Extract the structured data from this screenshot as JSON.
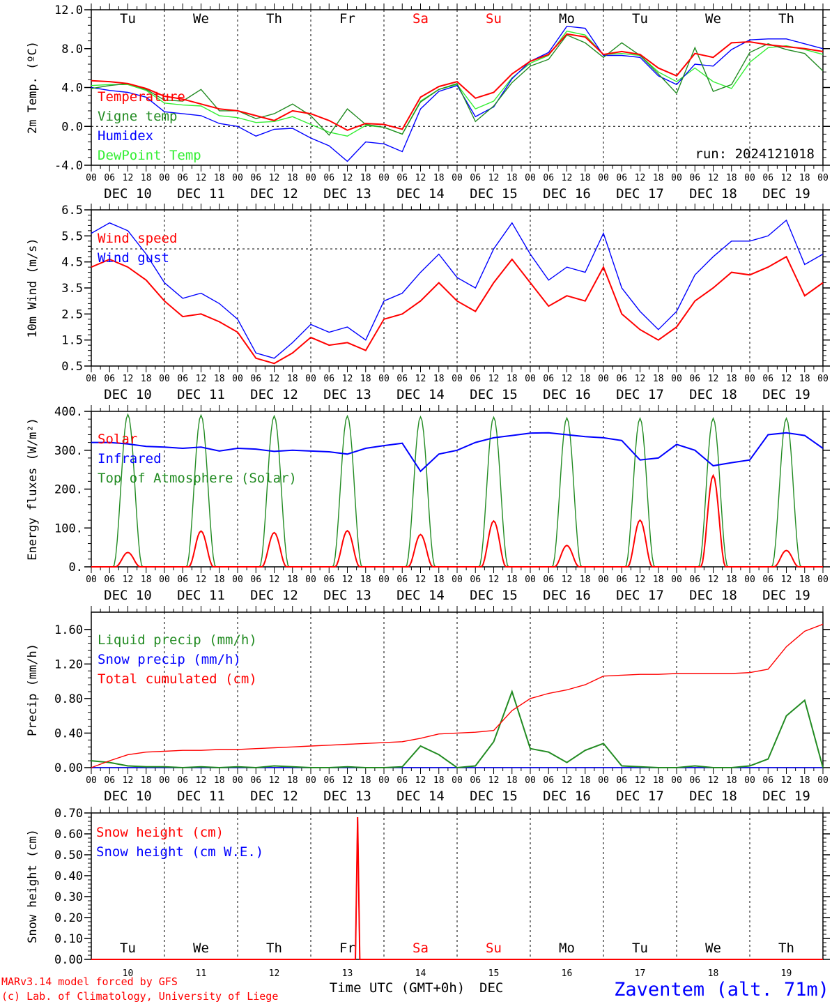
{
  "time_axis": {
    "hour_ticks": [
      "00",
      "06",
      "12",
      "18"
    ],
    "dates": [
      "DEC 10",
      "DEC 11",
      "DEC 12",
      "DEC 13",
      "DEC 14",
      "DEC 15",
      "DEC 16",
      "DEC 17",
      "DEC 18",
      "DEC 19"
    ],
    "weekdays": [
      "Tu",
      "We",
      "Th",
      "Fr",
      "Sa",
      "Su",
      "Mo",
      "Tu",
      "We",
      "Th"
    ],
    "weekend_color": "#ff0000",
    "days_numbers": [
      "10",
      "11",
      "12",
      "13",
      "14",
      "15",
      "16",
      "17",
      "18",
      "19"
    ],
    "title_left": "Time UTC (GMT+0h)",
    "title_right": "DEC"
  },
  "footer": {
    "model_line": "MARv3.14 model forced by GFS",
    "credit_line": "(c) Lab. of Climatology, University of Liege",
    "station": "Zaventem (alt. 71m)"
  },
  "colors": {
    "red": "#ff0000",
    "green": "#228b22",
    "blue": "#0000ff",
    "lightgreen": "#33ee33"
  },
  "chart_data": [
    {
      "type": "line",
      "id": "temp",
      "ylabel": "2m Temp. (ºC)",
      "ylim": [
        -4.0,
        12.0
      ],
      "yticks": [
        "-4.0",
        "0.0",
        "4.0",
        "8.0",
        "12.0"
      ],
      "ref_line": 0.0,
      "show_weekdays": true,
      "annotation": "run: 2024121018",
      "x_days": [
        0,
        0.25,
        0.5,
        0.75,
        1,
        1.25,
        1.5,
        1.75,
        2,
        2.25,
        2.5,
        2.75,
        3,
        3.25,
        3.5,
        3.75,
        4,
        4.25,
        4.5,
        4.75,
        5,
        5.25,
        5.5,
        5.75,
        6,
        6.25,
        6.5,
        6.75,
        7,
        7.25,
        7.5,
        7.75,
        8,
        8.25,
        8.5,
        8.75,
        9,
        9.25,
        9.5,
        9.75,
        10
      ],
      "series": [
        {
          "name": "Temperature",
          "color": "red",
          "values": [
            4.7,
            4.6,
            4.4,
            3.9,
            3.1,
            2.8,
            2.3,
            1.8,
            1.6,
            1.1,
            0.6,
            1.6,
            1.3,
            0.6,
            -0.4,
            0.3,
            0.2,
            -0.3,
            3.0,
            4.1,
            4.6,
            2.9,
            3.5,
            5.4,
            6.7,
            7.4,
            9.5,
            9.2,
            7.4,
            7.7,
            7.4,
            6.0,
            5.2,
            7.5,
            7.1,
            8.6,
            8.7,
            8.4,
            8.2,
            8.0,
            7.7
          ]
        },
        {
          "name": "Vigne temp",
          "color": "green",
          "values": [
            3.9,
            4.2,
            4.4,
            3.8,
            2.7,
            2.6,
            3.8,
            1.6,
            1.6,
            0.8,
            1.3,
            2.3,
            1.1,
            -0.9,
            1.8,
            0.2,
            -0.1,
            -0.8,
            2.5,
            3.8,
            4.4,
            0.5,
            2.1,
            4.5,
            6.2,
            6.9,
            9.4,
            8.6,
            7.1,
            8.6,
            7.3,
            5.4,
            3.4,
            8.1,
            3.6,
            4.3,
            7.6,
            8.5,
            7.9,
            7.5,
            5.7
          ]
        },
        {
          "name": "Humidex",
          "color": "blue",
          "values": [
            4.0,
            3.7,
            3.5,
            3.0,
            1.5,
            1.3,
            1.1,
            0.3,
            0.0,
            -1.0,
            -0.3,
            -0.2,
            -1.2,
            -2.0,
            -3.6,
            -1.6,
            -1.8,
            -2.6,
            1.8,
            3.6,
            4.2,
            1.0,
            2.0,
            4.9,
            6.7,
            7.6,
            10.3,
            10.1,
            7.3,
            7.3,
            7.1,
            5.2,
            4.3,
            6.4,
            6.2,
            7.9,
            8.9,
            9.0,
            9.0,
            8.5,
            8.0
          ]
        },
        {
          "name": "DewPoint Temp",
          "color": "lightgreen",
          "values": [
            4.2,
            4.3,
            4.3,
            3.7,
            2.4,
            2.2,
            2.1,
            1.1,
            0.9,
            0.4,
            0.5,
            1.0,
            0.2,
            -0.6,
            -1.0,
            0.1,
            -0.1,
            -0.8,
            2.6,
            3.8,
            4.3,
            1.8,
            2.6,
            5.0,
            6.5,
            7.3,
            9.8,
            9.4,
            7.4,
            7.5,
            7.3,
            5.6,
            4.6,
            6.0,
            4.6,
            3.9,
            6.6,
            8.1,
            8.3,
            7.9,
            7.4
          ]
        }
      ]
    },
    {
      "type": "line",
      "id": "wind",
      "ylabel": "10m Wind (m/s)",
      "ylim": [
        0.5,
        6.5
      ],
      "yticks": [
        "0.5",
        "1.5",
        "2.5",
        "3.5",
        "4.5",
        "5.5",
        "6.5"
      ],
      "ref_line": 5.0,
      "show_weekdays": false,
      "x_days": [
        0,
        0.25,
        0.5,
        0.75,
        1,
        1.25,
        1.5,
        1.75,
        2,
        2.25,
        2.5,
        2.75,
        3,
        3.25,
        3.5,
        3.75,
        4,
        4.25,
        4.5,
        4.75,
        5,
        5.25,
        5.5,
        5.75,
        6,
        6.25,
        6.5,
        6.75,
        7,
        7.25,
        7.5,
        7.75,
        8,
        8.25,
        8.5,
        8.75,
        9,
        9.25,
        9.5,
        9.75,
        10
      ],
      "series": [
        {
          "name": "Wind speed",
          "color": "red",
          "values": [
            4.3,
            4.6,
            4.3,
            3.8,
            3.0,
            2.4,
            2.5,
            2.2,
            1.8,
            0.8,
            0.6,
            1.0,
            1.6,
            1.3,
            1.4,
            1.1,
            2.3,
            2.5,
            3.0,
            3.7,
            3.0,
            2.6,
            3.7,
            4.6,
            3.7,
            2.8,
            3.2,
            3.0,
            4.3,
            2.5,
            1.9,
            1.5,
            2.0,
            3.0,
            3.5,
            4.1,
            4.0,
            4.3,
            4.7,
            3.2,
            3.7
          ]
        },
        {
          "name": "Wind gust",
          "color": "blue",
          "values": [
            5.6,
            6.0,
            5.7,
            4.8,
            3.7,
            3.1,
            3.3,
            2.9,
            2.3,
            1.0,
            0.8,
            1.4,
            2.1,
            1.8,
            2.0,
            1.5,
            3.0,
            3.3,
            4.1,
            4.8,
            3.9,
            3.5,
            5.0,
            6.0,
            4.8,
            3.8,
            4.3,
            4.1,
            5.6,
            3.5,
            2.6,
            1.9,
            2.6,
            4.0,
            4.7,
            5.3,
            5.3,
            5.5,
            6.1,
            4.4,
            4.8
          ]
        }
      ]
    },
    {
      "type": "line",
      "id": "energy",
      "ylabel": "Energy fluxes (W/m²)",
      "ylim": [
        0,
        400
      ],
      "yticks": [
        "0.",
        "100.",
        "200.",
        "300.",
        "400."
      ],
      "show_weekdays": false,
      "solar_peaks": [
        37,
        92,
        88,
        93,
        83,
        118,
        55,
        120,
        235,
        42
      ],
      "toa_peaks": [
        392,
        390,
        388,
        388,
        386,
        385,
        383,
        382,
        382,
        382
      ],
      "infrared": [
        320,
        320,
        316,
        310,
        308,
        305,
        308,
        298,
        305,
        303,
        297,
        300,
        298,
        296,
        290,
        305,
        312,
        318,
        246,
        290,
        300,
        320,
        332,
        338,
        344,
        345,
        340,
        335,
        332,
        325,
        275,
        280,
        315,
        300,
        260,
        268,
        275,
        340,
        345,
        338,
        305
      ],
      "series": [
        {
          "name": "Solar",
          "color": "red"
        },
        {
          "name": "Infrared",
          "color": "blue"
        },
        {
          "name": "Top of Atmosphere (Solar)",
          "color": "green"
        }
      ]
    },
    {
      "type": "line",
      "id": "precip",
      "ylabel": "Precip (mm/h)",
      "ylim": [
        0.0,
        1.8
      ],
      "yticks": [
        "0.00",
        "0.40",
        "0.80",
        "1.20",
        "1.60"
      ],
      "show_weekdays": false,
      "x_days": [
        0,
        0.25,
        0.5,
        0.75,
        1,
        1.25,
        1.5,
        1.75,
        2,
        2.25,
        2.5,
        2.75,
        3,
        3.25,
        3.5,
        3.75,
        4,
        4.25,
        4.5,
        4.75,
        5,
        5.25,
        5.5,
        5.75,
        6,
        6.25,
        6.5,
        6.75,
        7,
        7.25,
        7.5,
        7.75,
        8,
        8.25,
        8.5,
        8.75,
        9,
        9.25,
        9.5,
        9.75,
        10
      ],
      "series": [
        {
          "name": "Liquid precip (mm/h)",
          "color": "green",
          "values": [
            0.08,
            0.06,
            0.02,
            0.01,
            0.01,
            0.0,
            0.01,
            0.0,
            0.01,
            0.0,
            0.02,
            0.01,
            0.0,
            0.0,
            0.01,
            0.0,
            0.0,
            0.01,
            0.25,
            0.15,
            0.0,
            0.02,
            0.3,
            0.88,
            0.22,
            0.18,
            0.06,
            0.2,
            0.28,
            0.02,
            0.01,
            0.0,
            0.0,
            0.02,
            0.0,
            0.0,
            0.02,
            0.1,
            0.6,
            0.78,
            0.0
          ]
        },
        {
          "name": "Snow precip (mm/h)",
          "color": "blue",
          "values": [
            0,
            0,
            0,
            0,
            0,
            0,
            0,
            0,
            0,
            0,
            0,
            0,
            0,
            0,
            0,
            0,
            0,
            0,
            0,
            0,
            0,
            0,
            0,
            0,
            0,
            0,
            0,
            0,
            0,
            0,
            0,
            0,
            0,
            0,
            0,
            0,
            0,
            0,
            0,
            0,
            0
          ]
        },
        {
          "name": "Total cumulated (cm)",
          "color": "red",
          "values": [
            0.0,
            0.08,
            0.15,
            0.18,
            0.19,
            0.2,
            0.2,
            0.21,
            0.21,
            0.22,
            0.23,
            0.24,
            0.25,
            0.26,
            0.27,
            0.28,
            0.29,
            0.3,
            0.34,
            0.39,
            0.4,
            0.41,
            0.43,
            0.66,
            0.8,
            0.86,
            0.9,
            0.96,
            1.06,
            1.07,
            1.08,
            1.08,
            1.09,
            1.09,
            1.09,
            1.09,
            1.1,
            1.14,
            1.4,
            1.58,
            1.66
          ]
        }
      ]
    },
    {
      "type": "line",
      "id": "snow",
      "ylabel": "Snow height (cm)",
      "ylim": [
        0.0,
        0.7
      ],
      "yticks": [
        "0.00",
        "0.10",
        "0.20",
        "0.30",
        "0.40",
        "0.50",
        "0.60",
        "0.70"
      ],
      "show_weekdays": true,
      "spike": {
        "day": 3.64,
        "value": 0.68
      },
      "series": [
        {
          "name": "Snow height (cm)",
          "color": "red"
        },
        {
          "name": "Snow height (cm W.E.)",
          "color": "blue"
        }
      ]
    }
  ]
}
